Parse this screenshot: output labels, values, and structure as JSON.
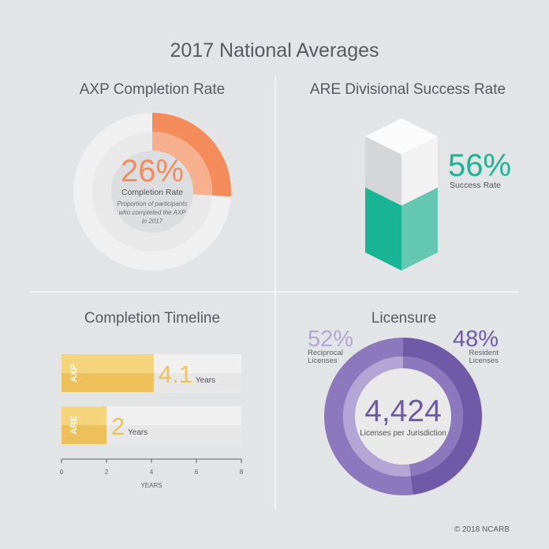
{
  "title": "2017 National Averages",
  "footer": "© 2018 NCARB",
  "colors": {
    "background": "#e3e4e6",
    "orange": "#f48b5a",
    "orange_light": "#f7b08e",
    "teal": "#19b495",
    "teal_light": "#64c8b1",
    "gold": "#eec05a",
    "gold_light": "#f5d47e",
    "purple": "#6e5aa6",
    "purple_mid": "#8c78bc",
    "purple_light": "#b3a6d4"
  },
  "chart_data": [
    {
      "type": "pie",
      "title": "AXP Completion Rate",
      "value_label": "26%",
      "value": 26,
      "caption": "Completion Rate",
      "note": "Proportion of participants who completed the AXP in 2017",
      "note_lines": [
        "Proportion of participants",
        "who completed the AXP",
        "in 2017"
      ]
    },
    {
      "type": "bar",
      "title": "ARE Divisional Success Rate",
      "value_label": "56%",
      "value": 56,
      "caption": "Success Rate"
    },
    {
      "type": "bar",
      "orientation": "horizontal",
      "title": "Completion Timeline",
      "categories": [
        "AXP",
        "ARE"
      ],
      "values": [
        4.1,
        2
      ],
      "value_labels": [
        "4.1",
        "2"
      ],
      "unit": "Years",
      "xlabel": "YEARS",
      "xlim": [
        0,
        8
      ],
      "ticks": [
        "0",
        "2",
        "4",
        "6",
        "8"
      ]
    },
    {
      "type": "pie",
      "title": "Licensure",
      "total_label": "4,424",
      "total_caption": "Licenses per Jurisdiction",
      "slices": [
        {
          "name": "Reciprocal Licenses",
          "label_lines": [
            "Reciprocal",
            "Licenses"
          ],
          "value": 52,
          "value_label": "52%"
        },
        {
          "name": "Resident Licenses",
          "label_lines": [
            "Resident",
            "Licenses"
          ],
          "value": 48,
          "value_label": "48%"
        }
      ]
    }
  ]
}
